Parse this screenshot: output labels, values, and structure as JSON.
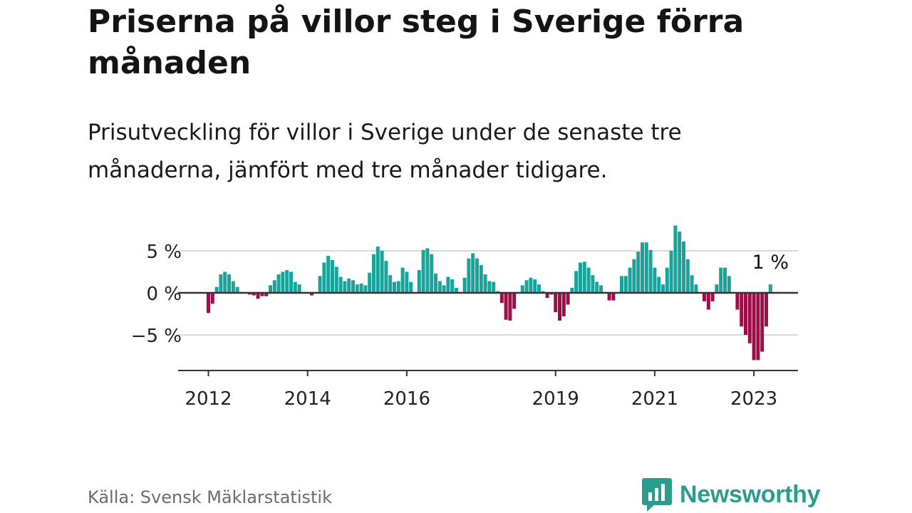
{
  "title": "Priserna på villor steg i Sverige förra månaden",
  "subtitle": "Prisutveckling för villor i Sverige under de senaste tre månaderna, jämfört med tre månader tidigare.",
  "source": "Källa: Svensk Mäklarstatistik",
  "brand": "Newsworthy",
  "colors": {
    "positive": "#1aa39a",
    "negative": "#9c0f48",
    "grid": "#d9d9d9",
    "axis": "#333333",
    "brand": "#2a9d8f"
  },
  "chart_data": {
    "type": "bar",
    "x_start": "2012-01",
    "frequency": "monthly",
    "ylim": [
      -9.3,
      6
    ],
    "yticks": [
      5,
      0,
      -5
    ],
    "ytick_labels": [
      "5 %",
      "0 %",
      "−5 %"
    ],
    "xticks": [
      "2012",
      "2014",
      "2016",
      "2019",
      "2021",
      "2023"
    ],
    "annotation": "1 %",
    "grid": true,
    "values": [
      -2.4,
      -1.3,
      0.7,
      2.2,
      2.5,
      2.2,
      1.4,
      0.7,
      0.1,
      0.0,
      -0.2,
      -0.3,
      -0.7,
      -0.4,
      -0.4,
      0.9,
      1.5,
      2.2,
      2.5,
      2.7,
      2.5,
      1.3,
      1.0,
      0.1,
      0.1,
      -0.3,
      0.1,
      2.0,
      3.6,
      4.4,
      3.9,
      3.1,
      1.9,
      1.4,
      1.7,
      1.5,
      1.0,
      1.1,
      0.9,
      2.4,
      4.6,
      5.5,
      5.0,
      3.8,
      2.1,
      1.3,
      1.4,
      3.0,
      2.5,
      1.3,
      0.1,
      2.7,
      5.1,
      5.3,
      4.6,
      2.3,
      1.4,
      0.9,
      1.9,
      1.6,
      0.6,
      0.1,
      1.8,
      4.1,
      4.7,
      4.1,
      3.3,
      2.2,
      1.4,
      1.3,
      0.2,
      -1.2,
      -3.2,
      -3.3,
      -1.9,
      0.0,
      0.9,
      1.5,
      1.8,
      1.6,
      1.0,
      0.2,
      -0.6,
      -0.2,
      -2.3,
      -3.3,
      -2.8,
      -1.4,
      0.6,
      2.6,
      3.6,
      3.7,
      3.0,
      2.1,
      1.3,
      0.9,
      0.1,
      -0.9,
      -0.9,
      0.0,
      2.0,
      2.0,
      3.0,
      4.0,
      4.9,
      6.0,
      6.0,
      5.1,
      3.0,
      1.9,
      1.0,
      3.0,
      5.0,
      8.0,
      7.3,
      6.1,
      4.0,
      2.1,
      1.0,
      0.1,
      -1.0,
      -2.0,
      -1.0,
      1.0,
      3.0,
      3.0,
      2.0,
      0.1,
      -2.0,
      -4.0,
      -5.0,
      -6.0,
      -8.0,
      -8.0,
      -7.0,
      -4.0,
      1.0
    ]
  }
}
